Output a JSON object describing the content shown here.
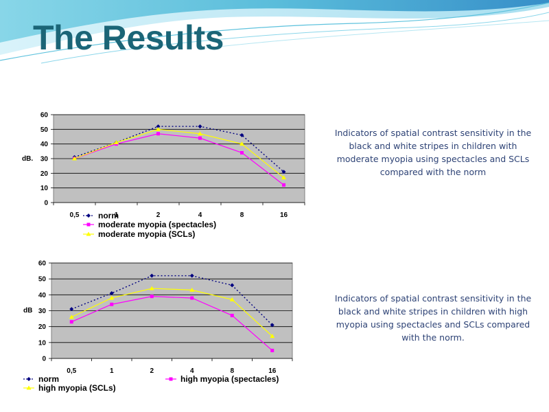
{
  "slide": {
    "title": "The Results",
    "caption1": "Indicators of spatial contrast sensitivity in the black and white stripes in children with moderate myopia using spectacles and SCLs compared with the norm",
    "caption2": "Indicators of spatial contrast sensitivity in the black and white stripes in children with high myopia using spectacles and SCLs compared with the norm."
  },
  "colors": {
    "title": "#1b6577",
    "caption": "#2d4275",
    "plot_bg": "#c0c0c0",
    "norm": "#000080",
    "spectacles": "#ff00ff",
    "scl": "#ffff00"
  },
  "chart_data": [
    {
      "type": "line",
      "title": "",
      "xlabel": "",
      "ylabel": "dB.",
      "categories": [
        "0,5",
        "1",
        "2",
        "4",
        "8",
        "16"
      ],
      "ylim": [
        0,
        60
      ],
      "yticks": [
        0,
        10,
        20,
        30,
        40,
        50,
        60
      ],
      "grid": true,
      "legend_position": "bottom",
      "series": [
        {
          "name": "norm",
          "color": "#000080",
          "marker": "diamond",
          "dashed": true,
          "values": [
            31,
            41,
            52,
            52,
            46,
            21
          ]
        },
        {
          "name": "moderate myopia (spectacles)",
          "color": "#ff00ff",
          "marker": "square",
          "dashed": false,
          "values": [
            30,
            40,
            47,
            44,
            34,
            12
          ]
        },
        {
          "name": "moderate myopia (SCLs)",
          "color": "#ffff00",
          "marker": "triangle",
          "dashed": false,
          "values": [
            30,
            41,
            50,
            47,
            40,
            17
          ]
        }
      ]
    },
    {
      "type": "line",
      "title": "",
      "xlabel": "",
      "ylabel": "dB",
      "categories": [
        "0,5",
        "1",
        "2",
        "4",
        "8",
        "16"
      ],
      "ylim": [
        0,
        60
      ],
      "yticks": [
        0,
        10,
        20,
        30,
        40,
        50,
        60
      ],
      "grid": true,
      "legend_position": "bottom",
      "series": [
        {
          "name": "norm",
          "color": "#000080",
          "marker": "diamond",
          "dashed": true,
          "values": [
            31,
            41,
            52,
            52,
            46,
            21
          ]
        },
        {
          "name": "high myopia (spectacles)",
          "color": "#ff00ff",
          "marker": "square",
          "dashed": false,
          "values": [
            23,
            34,
            39,
            38,
            27,
            5
          ]
        },
        {
          "name": "high myopia (SCLs)",
          "color": "#ffff00",
          "marker": "triangle",
          "dashed": false,
          "values": [
            26,
            38,
            44,
            43,
            37,
            14
          ]
        }
      ]
    }
  ]
}
